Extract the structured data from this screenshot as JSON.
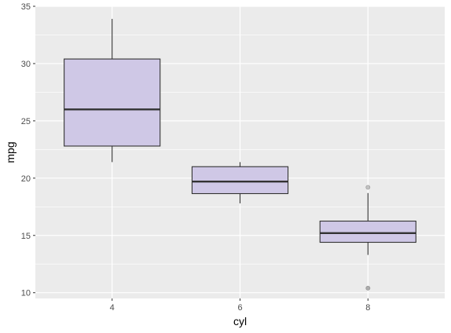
{
  "chart_data": {
    "type": "boxplot",
    "xlabel": "cyl",
    "ylabel": "mpg",
    "categories": [
      "4",
      "6",
      "8"
    ],
    "ylim": [
      9.5,
      35
    ],
    "yticks": [
      10,
      15,
      20,
      25,
      30,
      35
    ],
    "ytick_labels": [
      "10",
      "15",
      "20",
      "25",
      "30",
      "35"
    ],
    "grid": true,
    "boxes": [
      {
        "category": "4",
        "whisker_low": 21.4,
        "q1": 22.8,
        "median": 26.0,
        "q3": 30.4,
        "whisker_high": 33.9,
        "outliers": []
      },
      {
        "category": "6",
        "whisker_low": 17.8,
        "q1": 18.65,
        "median": 19.7,
        "q3": 21.0,
        "whisker_high": 21.4,
        "outliers": []
      },
      {
        "category": "8",
        "whisker_low": 13.3,
        "q1": 14.4,
        "median": 15.2,
        "q3": 16.25,
        "whisker_high": 18.7,
        "outliers": [
          10.4,
          10.4,
          19.2
        ]
      }
    ],
    "colors": {
      "panel_background": "#ebebeb",
      "grid_major": "#ffffff",
      "box_fill": "#cfc8e6",
      "box_stroke": "#333333",
      "outlier": "#999999"
    }
  }
}
